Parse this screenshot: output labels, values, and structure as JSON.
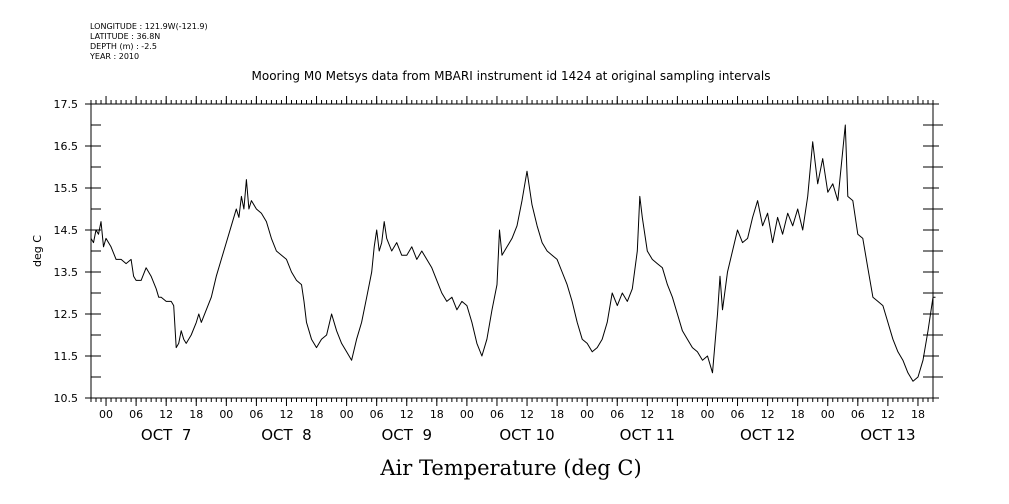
{
  "metadata": {
    "longitude": "LONGITUDE : 121.9W(-121.9)",
    "latitude": "LATITUDE : 36.8N",
    "depth": "DEPTH (m) : -2.5",
    "year": "YEAR : 2010"
  },
  "chart_data": {
    "type": "line",
    "title": "Mooring M0 Metsys data from MBARI instrument id 1424 at original sampling intervals",
    "xlabel": "Air Temperature (deg C)",
    "ylabel": "deg C",
    "xlim": [
      "2010-10-06 21:00",
      "2010-10-13 21:00"
    ],
    "ylim": [
      10.5,
      17.5
    ],
    "yticks": [
      "10.5",
      "11.5",
      "12.5",
      "13.5",
      "14.5",
      "15.5",
      "16.5",
      "17.5"
    ],
    "hour_ticks": [
      {
        "label": "00",
        "time": "2010-10-07 00:00"
      },
      {
        "label": "06",
        "time": "2010-10-07 06:00"
      },
      {
        "label": "12",
        "time": "2010-10-07 12:00"
      },
      {
        "label": "18",
        "time": "2010-10-07 18:00"
      },
      {
        "label": "00",
        "time": "2010-10-08 00:00"
      },
      {
        "label": "06",
        "time": "2010-10-08 06:00"
      },
      {
        "label": "12",
        "time": "2010-10-08 12:00"
      },
      {
        "label": "18",
        "time": "2010-10-08 18:00"
      },
      {
        "label": "00",
        "time": "2010-10-09 00:00"
      },
      {
        "label": "06",
        "time": "2010-10-09 06:00"
      },
      {
        "label": "12",
        "time": "2010-10-09 12:00"
      },
      {
        "label": "18",
        "time": "2010-10-09 18:00"
      },
      {
        "label": "00",
        "time": "2010-10-10 00:00"
      },
      {
        "label": "06",
        "time": "2010-10-10 06:00"
      },
      {
        "label": "12",
        "time": "2010-10-10 12:00"
      },
      {
        "label": "18",
        "time": "2010-10-10 18:00"
      },
      {
        "label": "00",
        "time": "2010-10-11 00:00"
      },
      {
        "label": "06",
        "time": "2010-10-11 06:00"
      },
      {
        "label": "12",
        "time": "2010-10-11 12:00"
      },
      {
        "label": "18",
        "time": "2010-10-11 18:00"
      },
      {
        "label": "00",
        "time": "2010-10-12 00:00"
      },
      {
        "label": "06",
        "time": "2010-10-12 06:00"
      },
      {
        "label": "12",
        "time": "2010-10-12 12:00"
      },
      {
        "label": "18",
        "time": "2010-10-12 18:00"
      },
      {
        "label": "00",
        "time": "2010-10-13 00:00"
      },
      {
        "label": "06",
        "time": "2010-10-13 06:00"
      },
      {
        "label": "12",
        "time": "2010-10-13 12:00"
      },
      {
        "label": "18",
        "time": "2010-10-13 18:00"
      }
    ],
    "day_labels": [
      {
        "label": "OCT  7",
        "time": "2010-10-07 12:00"
      },
      {
        "label": "OCT  8",
        "time": "2010-10-08 12:00"
      },
      {
        "label": "OCT  9",
        "time": "2010-10-09 12:00"
      },
      {
        "label": "OCT 10",
        "time": "2010-10-10 12:00"
      },
      {
        "label": "OCT 11",
        "time": "2010-10-11 12:00"
      },
      {
        "label": "OCT 12",
        "time": "2010-10-12 12:00"
      },
      {
        "label": "OCT 13",
        "time": "2010-10-13 12:00"
      }
    ],
    "grid": false,
    "series": [
      {
        "color": "#000000",
        "points": [
          [
            "2010-10-06 21:00",
            14.3
          ],
          [
            "2010-10-06 21:30",
            14.2
          ],
          [
            "2010-10-06 22:00",
            14.5
          ],
          [
            "2010-10-06 22:30",
            14.4
          ],
          [
            "2010-10-06 23:00",
            14.7
          ],
          [
            "2010-10-06 23:30",
            14.1
          ],
          [
            "2010-10-07 00:00",
            14.3
          ],
          [
            "2010-10-07 01:00",
            14.1
          ],
          [
            "2010-10-07 02:00",
            13.8
          ],
          [
            "2010-10-07 03:00",
            13.8
          ],
          [
            "2010-10-07 04:00",
            13.7
          ],
          [
            "2010-10-07 05:00",
            13.8
          ],
          [
            "2010-10-07 05:30",
            13.4
          ],
          [
            "2010-10-07 06:00",
            13.3
          ],
          [
            "2010-10-07 07:00",
            13.3
          ],
          [
            "2010-10-07 08:00",
            13.6
          ],
          [
            "2010-10-07 09:00",
            13.4
          ],
          [
            "2010-10-07 10:00",
            13.1
          ],
          [
            "2010-10-07 10:30",
            12.9
          ],
          [
            "2010-10-07 11:00",
            12.9
          ],
          [
            "2010-10-07 12:00",
            12.8
          ],
          [
            "2010-10-07 13:00",
            12.8
          ],
          [
            "2010-10-07 13:30",
            12.7
          ],
          [
            "2010-10-07 14:00",
            11.7
          ],
          [
            "2010-10-07 14:30",
            11.8
          ],
          [
            "2010-10-07 15:00",
            12.1
          ],
          [
            "2010-10-07 15:30",
            11.9
          ],
          [
            "2010-10-07 16:00",
            11.8
          ],
          [
            "2010-10-07 17:00",
            12.0
          ],
          [
            "2010-10-07 18:00",
            12.3
          ],
          [
            "2010-10-07 18:30",
            12.5
          ],
          [
            "2010-10-07 19:00",
            12.3
          ],
          [
            "2010-10-07 20:00",
            12.6
          ],
          [
            "2010-10-07 21:00",
            12.9
          ],
          [
            "2010-10-07 22:00",
            13.4
          ],
          [
            "2010-10-07 23:00",
            13.8
          ],
          [
            "2010-10-08 00:00",
            14.2
          ],
          [
            "2010-10-08 01:00",
            14.6
          ],
          [
            "2010-10-08 02:00",
            15.0
          ],
          [
            "2010-10-08 02:30",
            14.8
          ],
          [
            "2010-10-08 03:00",
            15.3
          ],
          [
            "2010-10-08 03:30",
            15.0
          ],
          [
            "2010-10-08 04:00",
            15.7
          ],
          [
            "2010-10-08 04:30",
            15.0
          ],
          [
            "2010-10-08 05:00",
            15.2
          ],
          [
            "2010-10-08 06:00",
            15.0
          ],
          [
            "2010-10-08 07:00",
            14.9
          ],
          [
            "2010-10-08 08:00",
            14.7
          ],
          [
            "2010-10-08 09:00",
            14.3
          ],
          [
            "2010-10-08 10:00",
            14.0
          ],
          [
            "2010-10-08 11:00",
            13.9
          ],
          [
            "2010-10-08 12:00",
            13.8
          ],
          [
            "2010-10-08 13:00",
            13.5
          ],
          [
            "2010-10-08 14:00",
            13.3
          ],
          [
            "2010-10-08 15:00",
            13.2
          ],
          [
            "2010-10-08 15:30",
            12.8
          ],
          [
            "2010-10-08 16:00",
            12.3
          ],
          [
            "2010-10-08 17:00",
            11.9
          ],
          [
            "2010-10-08 18:00",
            11.7
          ],
          [
            "2010-10-08 19:00",
            11.9
          ],
          [
            "2010-10-08 20:00",
            12.0
          ],
          [
            "2010-10-08 21:00",
            12.5
          ],
          [
            "2010-10-08 22:00",
            12.1
          ],
          [
            "2010-10-08 23:00",
            11.8
          ],
          [
            "2010-10-09 00:00",
            11.6
          ],
          [
            "2010-10-09 01:00",
            11.4
          ],
          [
            "2010-10-09 02:00",
            11.9
          ],
          [
            "2010-10-09 03:00",
            12.3
          ],
          [
            "2010-10-09 04:00",
            12.9
          ],
          [
            "2010-10-09 05:00",
            13.5
          ],
          [
            "2010-10-09 05:30",
            14.1
          ],
          [
            "2010-10-09 06:00",
            14.5
          ],
          [
            "2010-10-09 06:30",
            14.0
          ],
          [
            "2010-10-09 07:00",
            14.2
          ],
          [
            "2010-10-09 07:30",
            14.7
          ],
          [
            "2010-10-09 08:00",
            14.3
          ],
          [
            "2010-10-09 09:00",
            14.0
          ],
          [
            "2010-10-09 10:00",
            14.2
          ],
          [
            "2010-10-09 11:00",
            13.9
          ],
          [
            "2010-10-09 12:00",
            13.9
          ],
          [
            "2010-10-09 13:00",
            14.1
          ],
          [
            "2010-10-09 14:00",
            13.8
          ],
          [
            "2010-10-09 15:00",
            14.0
          ],
          [
            "2010-10-09 16:00",
            13.8
          ],
          [
            "2010-10-09 17:00",
            13.6
          ],
          [
            "2010-10-09 18:00",
            13.3
          ],
          [
            "2010-10-09 19:00",
            13.0
          ],
          [
            "2010-10-09 20:00",
            12.8
          ],
          [
            "2010-10-09 21:00",
            12.9
          ],
          [
            "2010-10-09 22:00",
            12.6
          ],
          [
            "2010-10-09 23:00",
            12.8
          ],
          [
            "2010-10-10 00:00",
            12.7
          ],
          [
            "2010-10-10 01:00",
            12.3
          ],
          [
            "2010-10-10 02:00",
            11.8
          ],
          [
            "2010-10-10 03:00",
            11.5
          ],
          [
            "2010-10-10 04:00",
            11.9
          ],
          [
            "2010-10-10 05:00",
            12.6
          ],
          [
            "2010-10-10 06:00",
            13.2
          ],
          [
            "2010-10-10 06:30",
            14.5
          ],
          [
            "2010-10-10 07:00",
            13.9
          ],
          [
            "2010-10-10 08:00",
            14.1
          ],
          [
            "2010-10-10 09:00",
            14.3
          ],
          [
            "2010-10-10 10:00",
            14.6
          ],
          [
            "2010-10-10 11:00",
            15.2
          ],
          [
            "2010-10-10 12:00",
            15.9
          ],
          [
            "2010-10-10 13:00",
            15.1
          ],
          [
            "2010-10-10 14:00",
            14.6
          ],
          [
            "2010-10-10 15:00",
            14.2
          ],
          [
            "2010-10-10 16:00",
            14.0
          ],
          [
            "2010-10-10 17:00",
            13.9
          ],
          [
            "2010-10-10 18:00",
            13.8
          ],
          [
            "2010-10-10 19:00",
            13.5
          ],
          [
            "2010-10-10 20:00",
            13.2
          ],
          [
            "2010-10-10 21:00",
            12.8
          ],
          [
            "2010-10-10 22:00",
            12.3
          ],
          [
            "2010-10-10 23:00",
            11.9
          ],
          [
            "2010-10-11 00:00",
            11.8
          ],
          [
            "2010-10-11 01:00",
            11.6
          ],
          [
            "2010-10-11 02:00",
            11.7
          ],
          [
            "2010-10-11 03:00",
            11.9
          ],
          [
            "2010-10-11 04:00",
            12.3
          ],
          [
            "2010-10-11 05:00",
            13.0
          ],
          [
            "2010-10-11 06:00",
            12.7
          ],
          [
            "2010-10-11 07:00",
            13.0
          ],
          [
            "2010-10-11 08:00",
            12.8
          ],
          [
            "2010-10-11 09:00",
            13.1
          ],
          [
            "2010-10-11 10:00",
            14.0
          ],
          [
            "2010-10-11 10:30",
            15.3
          ],
          [
            "2010-10-11 11:00",
            14.8
          ],
          [
            "2010-10-11 12:00",
            14.0
          ],
          [
            "2010-10-11 13:00",
            13.8
          ],
          [
            "2010-10-11 14:00",
            13.7
          ],
          [
            "2010-10-11 15:00",
            13.6
          ],
          [
            "2010-10-11 16:00",
            13.2
          ],
          [
            "2010-10-11 17:00",
            12.9
          ],
          [
            "2010-10-11 18:00",
            12.5
          ],
          [
            "2010-10-11 19:00",
            12.1
          ],
          [
            "2010-10-11 20:00",
            11.9
          ],
          [
            "2010-10-11 21:00",
            11.7
          ],
          [
            "2010-10-11 22:00",
            11.6
          ],
          [
            "2010-10-11 23:00",
            11.4
          ],
          [
            "2010-10-12 00:00",
            11.5
          ],
          [
            "2010-10-12 01:00",
            11.1
          ],
          [
            "2010-10-12 02:00",
            12.5
          ],
          [
            "2010-10-12 02:30",
            13.4
          ],
          [
            "2010-10-12 03:00",
            12.6
          ],
          [
            "2010-10-12 04:00",
            13.5
          ],
          [
            "2010-10-12 05:00",
            14.0
          ],
          [
            "2010-10-12 06:00",
            14.5
          ],
          [
            "2010-10-12 07:00",
            14.2
          ],
          [
            "2010-10-12 08:00",
            14.3
          ],
          [
            "2010-10-12 09:00",
            14.8
          ],
          [
            "2010-10-12 10:00",
            15.2
          ],
          [
            "2010-10-12 11:00",
            14.6
          ],
          [
            "2010-10-12 12:00",
            14.9
          ],
          [
            "2010-10-12 13:00",
            14.2
          ],
          [
            "2010-10-12 14:00",
            14.8
          ],
          [
            "2010-10-12 15:00",
            14.4
          ],
          [
            "2010-10-12 16:00",
            14.9
          ],
          [
            "2010-10-12 17:00",
            14.6
          ],
          [
            "2010-10-12 18:00",
            15.0
          ],
          [
            "2010-10-12 19:00",
            14.5
          ],
          [
            "2010-10-12 20:00",
            15.3
          ],
          [
            "2010-10-12 21:00",
            16.6
          ],
          [
            "2010-10-12 22:00",
            15.6
          ],
          [
            "2010-10-12 23:00",
            16.2
          ],
          [
            "2010-10-13 00:00",
            15.4
          ],
          [
            "2010-10-13 01:00",
            15.6
          ],
          [
            "2010-10-13 02:00",
            15.2
          ],
          [
            "2010-10-13 03:00",
            16.4
          ],
          [
            "2010-10-13 03:30",
            17.0
          ],
          [
            "2010-10-13 04:00",
            15.3
          ],
          [
            "2010-10-13 05:00",
            15.2
          ],
          [
            "2010-10-13 06:00",
            14.4
          ],
          [
            "2010-10-13 07:00",
            14.3
          ],
          [
            "2010-10-13 08:00",
            13.6
          ],
          [
            "2010-10-13 09:00",
            12.9
          ],
          [
            "2010-10-13 10:00",
            12.8
          ],
          [
            "2010-10-13 11:00",
            12.7
          ],
          [
            "2010-10-13 12:00",
            12.3
          ],
          [
            "2010-10-13 13:00",
            11.9
          ],
          [
            "2010-10-13 14:00",
            11.6
          ],
          [
            "2010-10-13 15:00",
            11.4
          ],
          [
            "2010-10-13 16:00",
            11.1
          ],
          [
            "2010-10-13 17:00",
            10.9
          ],
          [
            "2010-10-13 18:00",
            11.0
          ],
          [
            "2010-10-13 19:00",
            11.4
          ],
          [
            "2010-10-13 20:00",
            12.1
          ],
          [
            "2010-10-13 21:00",
            12.9
          ],
          [
            "2010-10-13 21:30",
            12.9
          ]
        ]
      }
    ]
  }
}
